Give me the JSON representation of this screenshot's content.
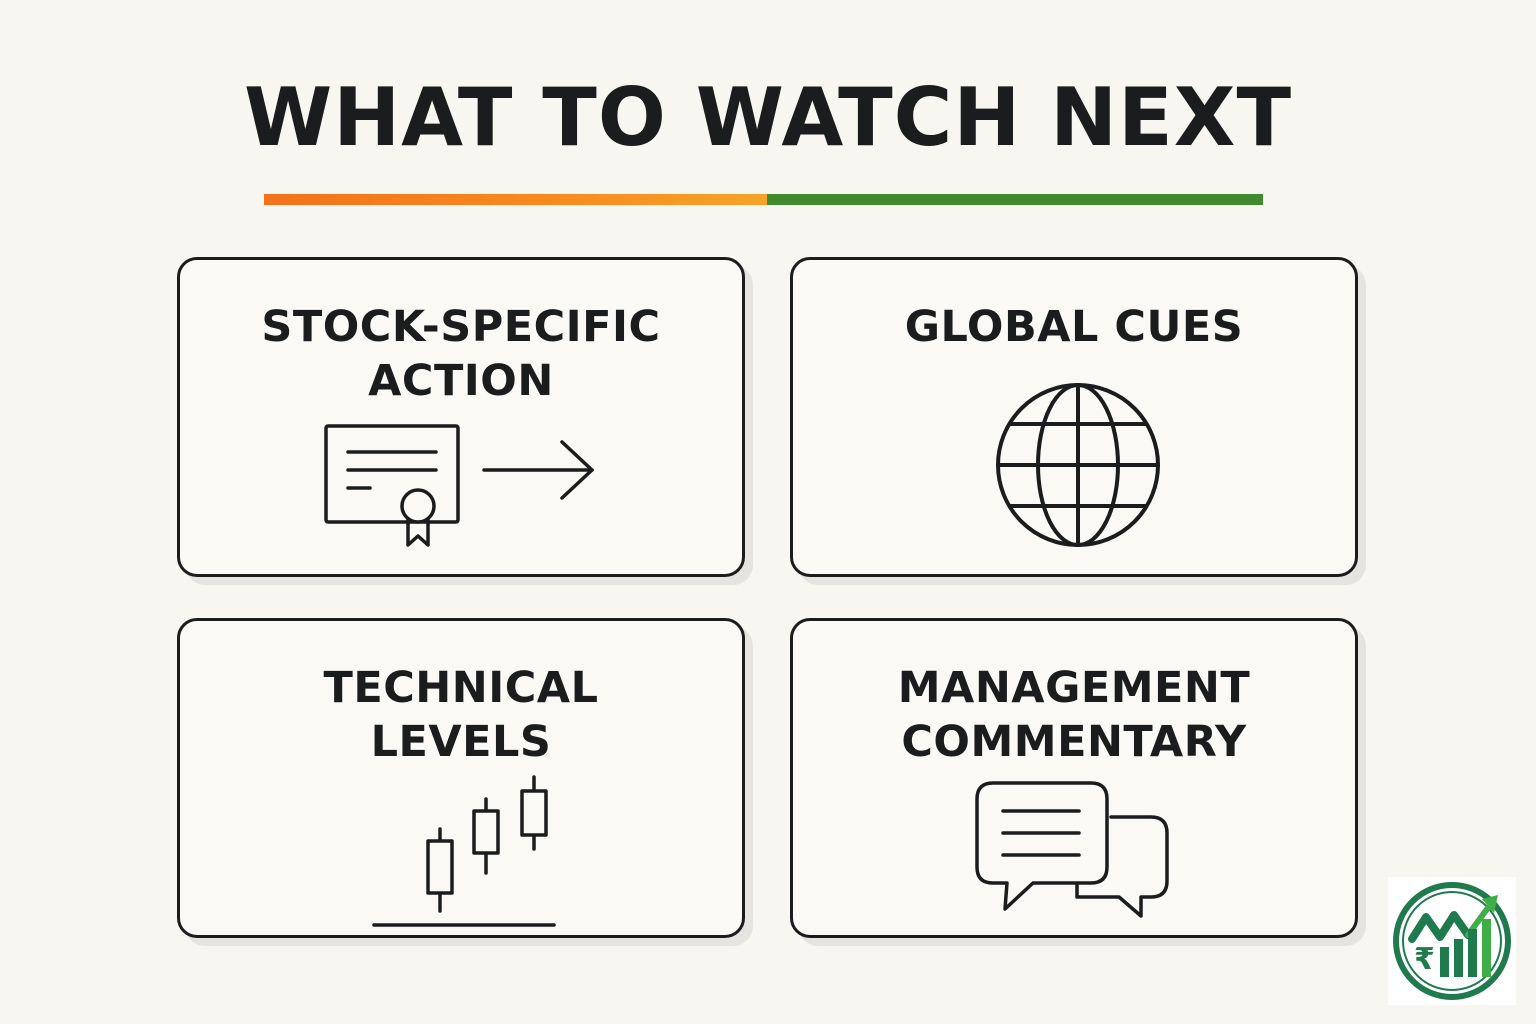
{
  "title": "WHAT TO WATCH NEXT",
  "colors": {
    "background": "#f8f6f1",
    "text": "#1a1c1e",
    "accent_orange": "#f78c1f",
    "accent_green": "#3f8b2e",
    "logo_green": "#1f7a4d"
  },
  "cards": [
    {
      "lines": [
        "STOCK-SPECIFIC",
        "ACTION"
      ],
      "icon": "certificate-arrow-icon"
    },
    {
      "lines": [
        "GLOBAL CUES"
      ],
      "icon": "globe-icon"
    },
    {
      "lines": [
        "TECHNICAL",
        "LEVELS"
      ],
      "icon": "candlestick-icon"
    },
    {
      "lines": [
        "MANAGEMENT",
        "COMMENTARY"
      ],
      "icon": "chat-bubbles-icon"
    }
  ],
  "logo": {
    "icon": "brand-logo-icon"
  }
}
